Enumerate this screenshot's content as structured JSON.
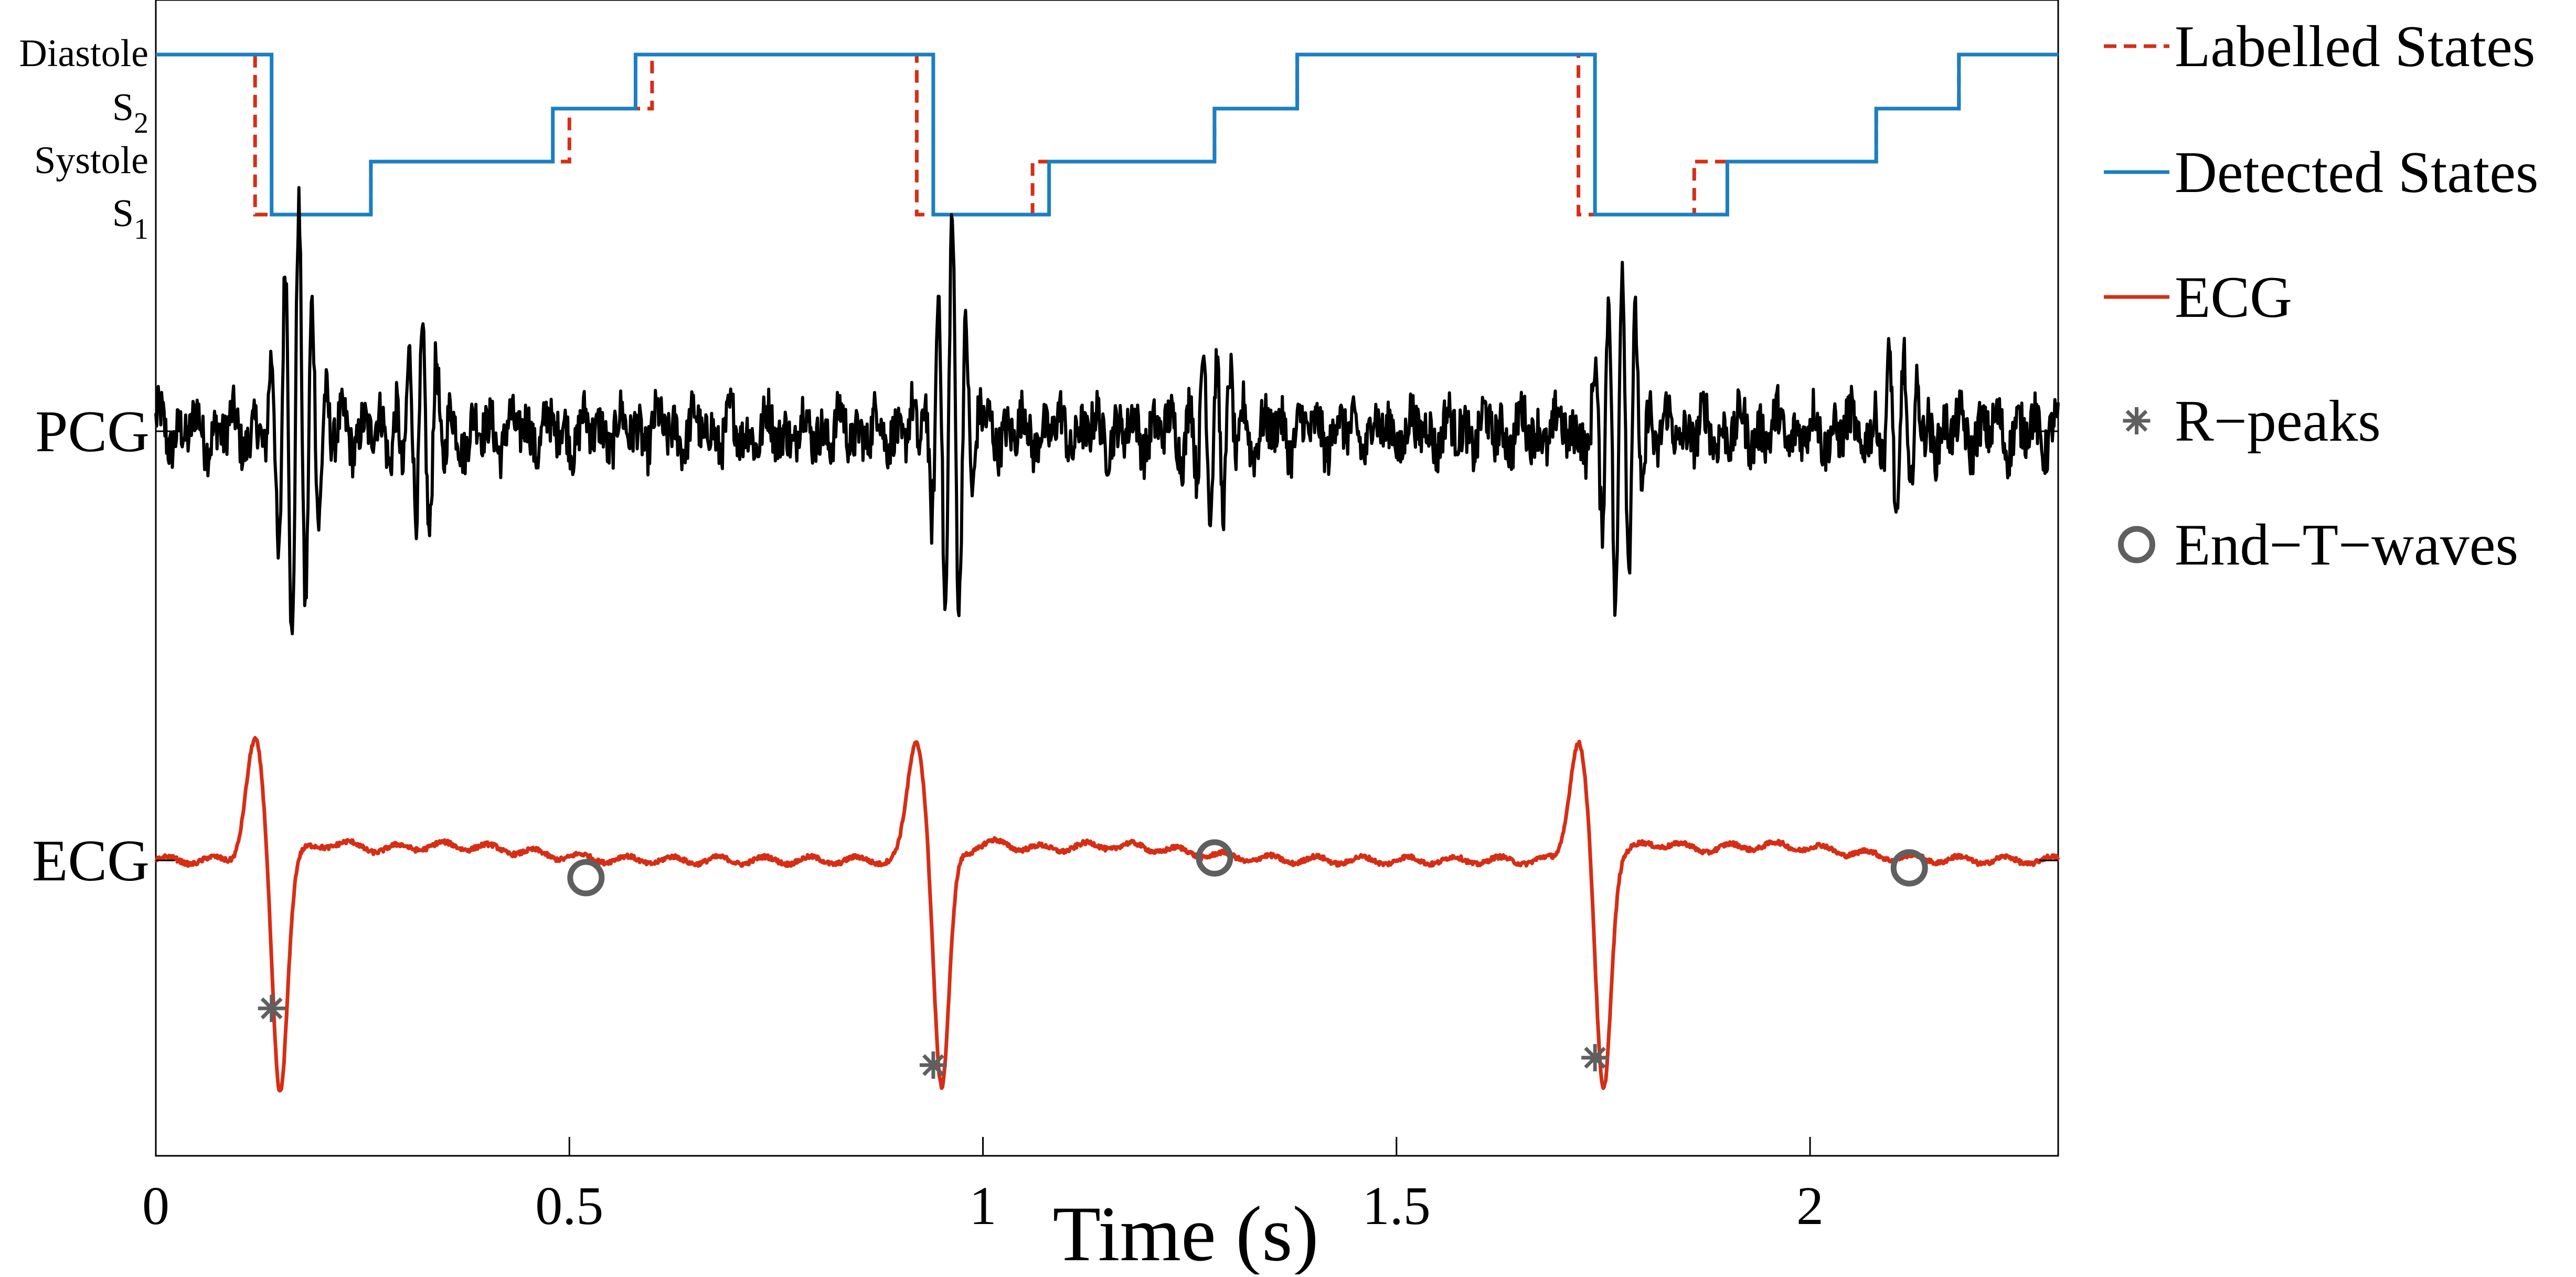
{
  "chart_data": {
    "type": "line",
    "xlabel": "Time (s)",
    "xlim": [
      0,
      2.3
    ],
    "x_ticks": [
      {
        "value": 0,
        "label": "0"
      },
      {
        "value": 0.5,
        "label": "0.5"
      },
      {
        "value": 1,
        "label": "1"
      },
      {
        "value": 1.5,
        "label": "1.5"
      },
      {
        "value": 2,
        "label": "2"
      }
    ],
    "y_ticks": [
      {
        "label": "PCG"
      },
      {
        "label": "ECG"
      }
    ],
    "state_labels": [
      {
        "label": "Diastole"
      },
      {
        "label": "S",
        "sub": "2"
      },
      {
        "label": "Systole"
      },
      {
        "label": "S",
        "sub": "1"
      }
    ],
    "grid": false,
    "legend_position": "right",
    "legend": [
      {
        "label": "Labelled States",
        "key": "labelled"
      },
      {
        "label": "Detected States",
        "key": "detected"
      },
      {
        "label": "ECG",
        "key": "ecg"
      },
      {
        "label": "R−peaks",
        "key": "rpeaks"
      },
      {
        "label": "End−T−waves",
        "key": "endt"
      }
    ],
    "colors": {
      "labelled": "#D62E15",
      "detected": "#1A7FC3",
      "ecg": "#D62E15",
      "pcg": "#000000",
      "markers": "#5F5F5F"
    },
    "state_levels": {
      "S1": 1,
      "Systole": 2,
      "S2": 3,
      "Diastole": 4
    },
    "labelled_states": [
      [
        0,
        4
      ],
      [
        0.12,
        1
      ],
      [
        0.26,
        2
      ],
      [
        0.5,
        3
      ],
      [
        0.6,
        4
      ],
      [
        0.92,
        1
      ],
      [
        1.06,
        2
      ],
      [
        1.28,
        3
      ],
      [
        1.38,
        4
      ],
      [
        1.72,
        1
      ],
      [
        1.86,
        2
      ],
      [
        2.08,
        3
      ],
      [
        2.18,
        4
      ],
      [
        2.3,
        4
      ]
    ],
    "detected_states": [
      [
        0,
        4
      ],
      [
        0.14,
        1
      ],
      [
        0.26,
        2
      ],
      [
        0.48,
        3
      ],
      [
        0.58,
        4
      ],
      [
        0.94,
        1
      ],
      [
        1.08,
        2
      ],
      [
        1.28,
        3
      ],
      [
        1.38,
        4
      ],
      [
        1.74,
        1
      ],
      [
        1.9,
        2
      ],
      [
        2.08,
        3
      ],
      [
        2.18,
        4
      ],
      [
        2.3,
        4
      ]
    ],
    "ecg_qrs_times": [
      0.13,
      0.93,
      1.73
    ],
    "r_peaks": [
      [
        0.14,
        -0.6
      ],
      [
        0.94,
        -0.83
      ],
      [
        1.74,
        -0.8
      ]
    ],
    "end_t_waves": [
      [
        0.52,
        -0.07
      ],
      [
        1.28,
        0.01
      ],
      [
        2.12,
        -0.03
      ]
    ],
    "pcg_bursts": [
      {
        "t": 0.17,
        "amp": 1.0
      },
      {
        "t": 0.32,
        "amp": 0.45
      },
      {
        "t": 0.96,
        "amp": 0.85
      },
      {
        "t": 1.28,
        "amp": 0.4
      },
      {
        "t": 1.77,
        "amp": 0.8
      },
      {
        "t": 2.11,
        "amp": 0.35
      }
    ]
  }
}
